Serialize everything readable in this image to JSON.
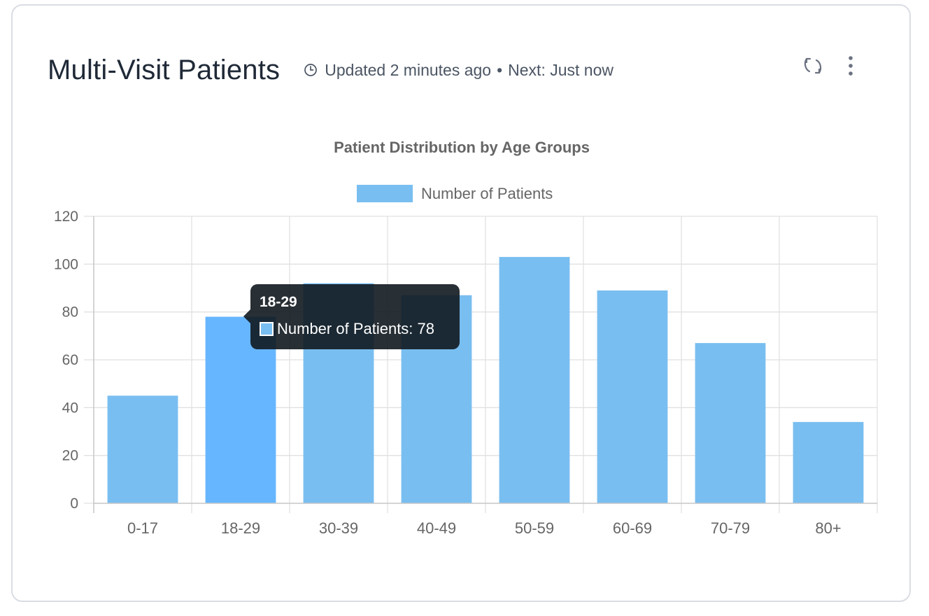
{
  "card": {
    "title": "Multi-Visit Patients",
    "updated": "Updated 2 minutes ago",
    "separator": "•",
    "next": "Next: Just now",
    "icons": {
      "clock": "clock-icon",
      "refresh": "refresh-icon",
      "menu": "more-vertical-icon"
    }
  },
  "chart_data": {
    "type": "bar",
    "title": "Patient Distribution by Age Groups",
    "categories": [
      "0-17",
      "18-29",
      "30-39",
      "40-49",
      "50-59",
      "60-69",
      "70-79",
      "80+"
    ],
    "series": [
      {
        "name": "Number of Patients",
        "values": [
          45,
          78,
          92,
          87,
          103,
          89,
          67,
          34
        ],
        "color": "#79bef0",
        "hover_color": "#66b6ff"
      }
    ],
    "ylim": [
      0,
      120
    ],
    "yticks": [
      0,
      20,
      40,
      60,
      80,
      100,
      120
    ],
    "grid": true,
    "legend": "top-center",
    "highlighted_category": "18-29"
  },
  "tooltip": {
    "title": "18-29",
    "label": "Number of Patients: 78"
  }
}
